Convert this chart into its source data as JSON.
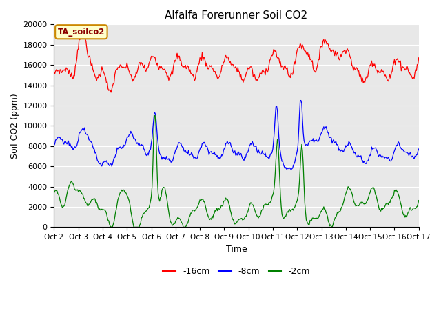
{
  "title": "Alfalfa Forerunner Soil CO2",
  "xlabel": "Time",
  "ylabel": "Soil CO2 (ppm)",
  "legend_label": "TA_soilco2",
  "ylim": [
    0,
    20000
  ],
  "background_color": "#e8e8e8",
  "fig_bg": "#ffffff",
  "line_colors": [
    "red",
    "blue",
    "green"
  ],
  "line_labels": [
    "-16cm",
    "-8cm",
    "-2cm"
  ],
  "x_tick_labels": [
    "Oct 2",
    "Oct 3",
    "Oct 4",
    "Oct 5",
    "Oct 6",
    "Oct 7",
    "Oct 8",
    "Oct 9",
    "Oct 10",
    "Oct 11",
    "Oct 12",
    "Oct 13",
    "Oct 14",
    "Oct 15",
    "Oct 16",
    "Oct 17"
  ],
  "n_points": 481,
  "figsize": [
    6.4,
    4.8
  ],
  "dpi": 100
}
